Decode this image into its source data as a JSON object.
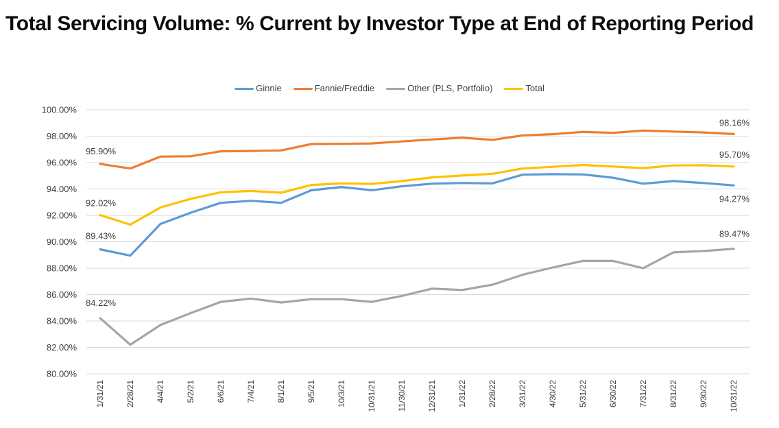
{
  "title": "Total Servicing Volume: % Current by Investor Type at End of Reporting Period",
  "chart_data": {
    "type": "line",
    "title": "Total Servicing Volume: % Current by Investor Type at End of Reporting Period",
    "xlabel": "",
    "ylabel": "",
    "legend_position": "top",
    "grid": true,
    "y_axis": {
      "min": 80,
      "max": 100,
      "step": 2,
      "suffix": "%",
      "decimals": 2
    },
    "x_labels": [
      "1/31/21",
      "2/28/21",
      "4/4/21",
      "5/2/21",
      "6/6/21",
      "7/4/21",
      "8/1/21",
      "9/5/21",
      "10/3/21",
      "10/31/21",
      "11/30/21",
      "12/31/21",
      "1/31/22",
      "2/28/22",
      "3/31/22",
      "4/30/22",
      "5/31/22",
      "6/30/22",
      "7/31/22",
      "8/31/22",
      "9/30/22",
      "10/31/22"
    ],
    "series": [
      {
        "name": "Ginnie",
        "color": "#5B9BD5",
        "values": [
          89.43,
          88.95,
          91.35,
          92.2,
          92.95,
          93.1,
          92.95,
          93.9,
          94.15,
          93.9,
          94.2,
          94.4,
          94.45,
          94.42,
          95.08,
          95.12,
          95.1,
          94.85,
          94.4,
          94.6,
          94.45,
          94.27
        ]
      },
      {
        "name": "Fannie/Freddie",
        "color": "#ED7D31",
        "values": [
          95.9,
          95.55,
          96.45,
          96.48,
          96.85,
          96.88,
          96.92,
          97.4,
          97.42,
          97.45,
          97.6,
          97.75,
          97.88,
          97.72,
          98.05,
          98.15,
          98.32,
          98.25,
          98.42,
          98.35,
          98.28,
          98.16
        ]
      },
      {
        "name": "Other (PLS, Portfolio)",
        "color": "#A5A5A5",
        "values": [
          84.22,
          82.2,
          83.7,
          84.6,
          85.45,
          85.7,
          85.4,
          85.65,
          85.65,
          85.45,
          85.9,
          86.45,
          86.35,
          86.75,
          87.5,
          88.05,
          88.55,
          88.55,
          88.0,
          89.2,
          89.3,
          89.47
        ]
      },
      {
        "name": "Total",
        "color": "#FFC000",
        "values": [
          92.02,
          91.3,
          92.6,
          93.25,
          93.75,
          93.85,
          93.72,
          94.3,
          94.42,
          94.38,
          94.6,
          94.88,
          95.02,
          95.15,
          95.55,
          95.68,
          95.82,
          95.7,
          95.58,
          95.78,
          95.8,
          95.7
        ]
      }
    ],
    "point_labels": [
      {
        "text": "95.90%",
        "series": 1,
        "point": 0,
        "anchor": "start",
        "dy": -14
      },
      {
        "text": "92.02%",
        "series": 3,
        "point": 0,
        "anchor": "start",
        "dy": -13
      },
      {
        "text": "89.43%",
        "series": 0,
        "point": 0,
        "anchor": "start",
        "dy": -15
      },
      {
        "text": "84.22%",
        "series": 2,
        "point": 0,
        "anchor": "start",
        "dy": -18
      },
      {
        "text": "98.16%",
        "series": 1,
        "point": 21,
        "anchor": "end",
        "dy": -12
      },
      {
        "text": "95.70%",
        "series": 3,
        "point": 21,
        "anchor": "end",
        "dy": -13
      },
      {
        "text": "94.27%",
        "series": 0,
        "point": 21,
        "anchor": "end",
        "dy": 24
      },
      {
        "text": "89.47%",
        "series": 2,
        "point": 21,
        "anchor": "end",
        "dy": -17
      }
    ]
  },
  "colors": {
    "background": "#FFFFFF",
    "gridline": "#D9D9D9",
    "axis_text": "#404040",
    "point_label_text": "#404040",
    "title_text": "#0D0D0D"
  }
}
